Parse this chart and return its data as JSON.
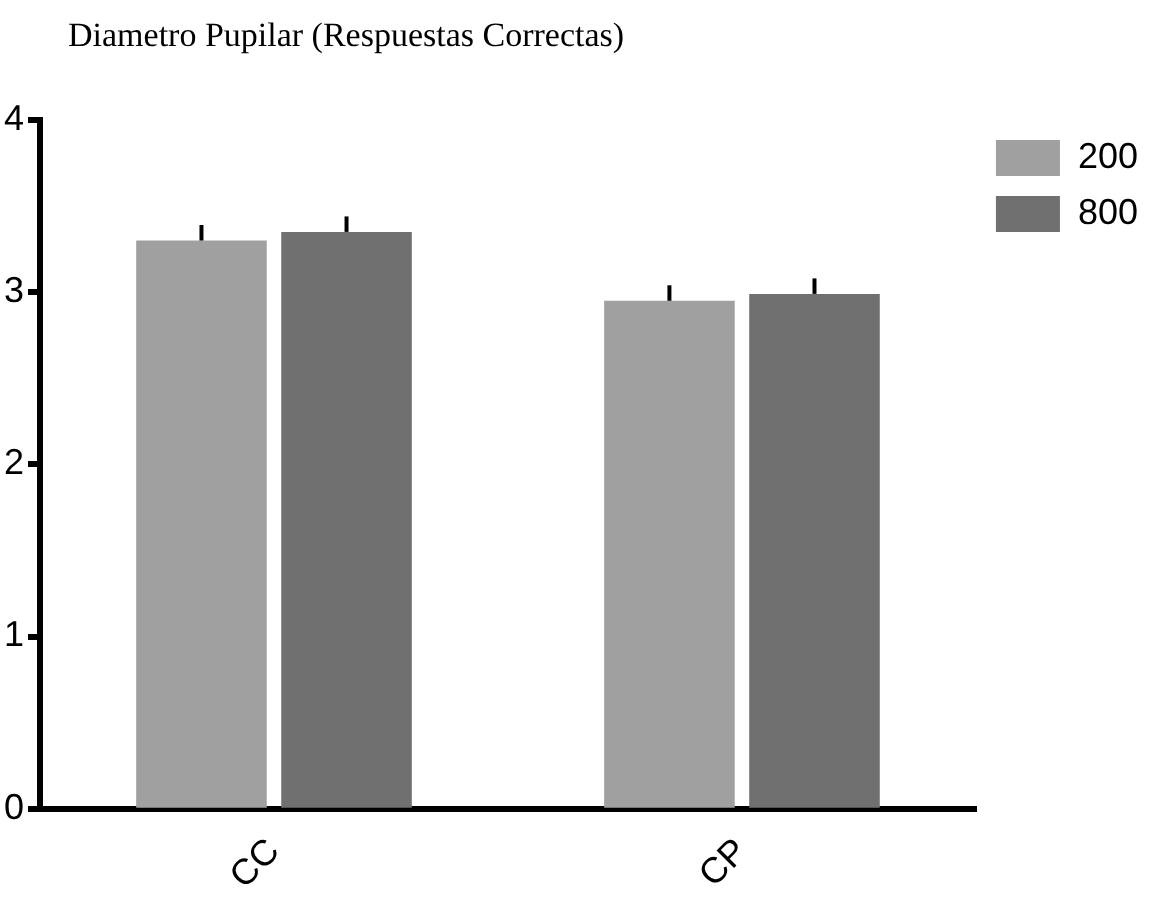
{
  "chart_data": {
    "type": "bar",
    "title": "Diametro Pupilar  (Respuestas Correctas)",
    "categories": [
      "CC",
      "CP"
    ],
    "series": [
      {
        "name": "200",
        "color": "#a0a0a0",
        "values": [
          3.3,
          2.95
        ],
        "errors": [
          0.09,
          0.09
        ]
      },
      {
        "name": "800",
        "color": "#707070",
        "values": [
          3.35,
          2.99
        ],
        "errors": [
          0.09,
          0.09
        ]
      }
    ],
    "ylim": [
      0,
      4
    ],
    "yticks": [
      0,
      1,
      2,
      3,
      4
    ],
    "grid": false,
    "legend": "top right"
  }
}
